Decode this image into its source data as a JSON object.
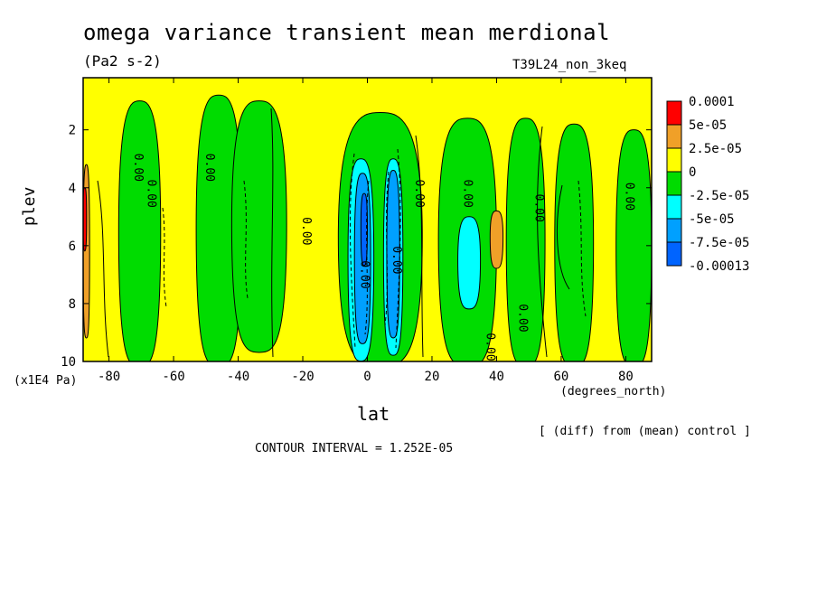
{
  "chart_data": {
    "type": "heatmap",
    "subtype": "filled-contour",
    "title": "omega variance transient mean merdional",
    "units": "(Pa2 s-2)",
    "run_id": "T39L24_non_3keq",
    "xlabel": "lat",
    "x_units": "(degrees_north)",
    "ylabel": "plev",
    "y_units": "(x1E4 Pa)",
    "xlim": [
      -88,
      88
    ],
    "ylim": [
      0.2,
      10
    ],
    "y_inverted": true,
    "x_ticks": [
      -80,
      -60,
      -40,
      -20,
      0,
      20,
      40,
      60,
      80
    ],
    "y_ticks": [
      2,
      4,
      6,
      8,
      10
    ],
    "x_tick_labels": [
      "-80",
      "-60",
      "-40",
      "-20",
      "0",
      "20",
      "40",
      "60",
      "80"
    ],
    "y_tick_labels": [
      "2",
      "4",
      "6",
      "8",
      "10"
    ],
    "note": "[ (diff) from (mean) control ]",
    "contour_interval": "CONTOUR INTERVAL = 1.252E-05",
    "contour_label_text": "0.00",
    "legend": [
      {
        "label": "0.0001",
        "color": "#ff0000"
      },
      {
        "label": "5e-05",
        "color": "#f0a028"
      },
      {
        "label": "2.5e-05",
        "color": "#ffff00"
      },
      {
        "label": "0",
        "color": "#00dc00"
      },
      {
        "label": "-2.5e-05",
        "color": "#00ffff"
      },
      {
        "label": "-5e-05",
        "color": "#00a0ff"
      },
      {
        "label": "-7.5e-05",
        "color": "#0064ff"
      },
      {
        "label": "-0.00013",
        "color": ""
      }
    ],
    "regions": [
      {
        "level": "0 to 2.5e-05",
        "color": "#ffff00",
        "lat": [
          -88,
          88
        ],
        "plev": [
          0.2,
          10
        ]
      },
      {
        "level": "-2.5e-05 to 0",
        "color": "#00dc00",
        "lat": [
          -77,
          -64
        ],
        "plev": [
          1.0,
          10
        ]
      },
      {
        "level": "-2.5e-05 to 0",
        "color": "#00dc00",
        "lat": [
          -53,
          -39
        ],
        "plev": [
          0.8,
          10
        ]
      },
      {
        "level": "-2.5e-05 to 0",
        "color": "#00dc00",
        "lat": [
          -42,
          -25
        ],
        "plev": [
          1.0,
          9.5
        ]
      },
      {
        "level": "-2.5e-05 to 0",
        "color": "#00dc00",
        "lat": [
          -9,
          17
        ],
        "plev": [
          1.4,
          10
        ]
      },
      {
        "level": "-2.5e-05 to 0",
        "color": "#00dc00",
        "lat": [
          22,
          40
        ],
        "plev": [
          1.6,
          10
        ]
      },
      {
        "level": "-2.5e-05 to 0",
        "color": "#00dc00",
        "lat": [
          43,
          55
        ],
        "plev": [
          1.6,
          10
        ]
      },
      {
        "level": "-2.5e-05 to 0",
        "color": "#00dc00",
        "lat": [
          58,
          70
        ],
        "plev": [
          1.8,
          10
        ]
      },
      {
        "level": "-2.5e-05 to 0",
        "color": "#00dc00",
        "lat": [
          77,
          88
        ],
        "plev": [
          2.0,
          10
        ]
      },
      {
        "level": "-5e-05 to -2.5e-05",
        "color": "#00ffff",
        "lat": [
          -6,
          2
        ],
        "plev": [
          3.0,
          9.8
        ]
      },
      {
        "level": "-5e-05 to -2.5e-05",
        "color": "#00ffff",
        "lat": [
          5,
          11
        ],
        "plev": [
          3.0,
          9.6
        ]
      },
      {
        "level": "-5e-05 to -2.5e-05",
        "color": "#00ffff",
        "lat": [
          28,
          35
        ],
        "plev": [
          5.0,
          8.0
        ]
      },
      {
        "level": "-7.5e-05 to -5e-05",
        "color": "#00a0ff",
        "lat": [
          -4,
          1
        ],
        "plev": [
          3.5,
          9.2
        ]
      },
      {
        "level": "-7.5e-05 to -5e-05",
        "color": "#00a0ff",
        "lat": [
          6,
          10
        ],
        "plev": [
          3.4,
          9.0
        ]
      },
      {
        "level": "< -7.5e-05",
        "color": "#0064ff",
        "lat": [
          -2,
          0
        ],
        "plev": [
          4.2,
          6.5
        ]
      },
      {
        "level": "2.5e-05 to 5e-05",
        "color": "#f0a028",
        "lat": [
          -88,
          -86
        ],
        "plev": [
          3.2,
          9.0
        ]
      },
      {
        "level": "2.5e-05 to 5e-05",
        "color": "#f0a028",
        "lat": [
          38,
          42
        ],
        "plev": [
          4.8,
          6.6
        ]
      },
      {
        "level": "> 5e-05",
        "color": "#ff0000",
        "lat": [
          -88,
          -87
        ],
        "plev": [
          4.0,
          6.0
        ]
      }
    ]
  }
}
